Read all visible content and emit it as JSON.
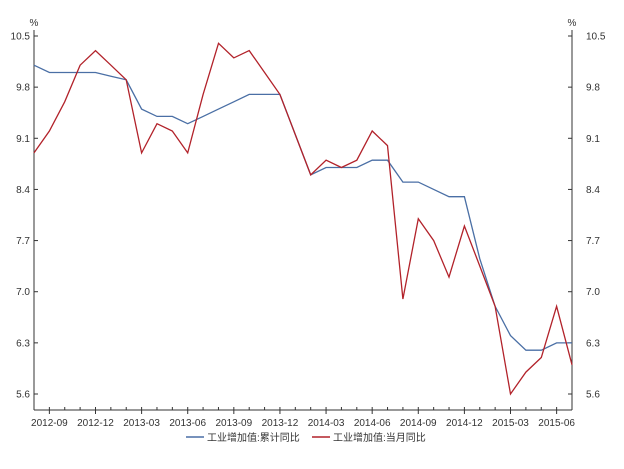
{
  "chart_data": {
    "type": "line",
    "unit_left": "%",
    "unit_right": "%",
    "ylim": [
      5.6,
      10.5
    ],
    "yticks": [
      10.5,
      9.8,
      9.1,
      8.4,
      7.7,
      7.0,
      6.3,
      5.6
    ],
    "ytick_labels": [
      "10.5",
      "9.8",
      "9.1",
      "8.4",
      "7.7",
      "7.0",
      "6.3",
      "5.6"
    ],
    "x_categories": [
      "2012-08",
      "2012-09",
      "2012-10",
      "2012-11",
      "2012-12",
      "2013-01",
      "2013-02",
      "2013-03",
      "2013-04",
      "2013-05",
      "2013-06",
      "2013-07",
      "2013-08",
      "2013-09",
      "2013-10",
      "2013-11",
      "2013-12",
      "2014-01",
      "2014-02",
      "2014-03",
      "2014-04",
      "2014-05",
      "2014-06",
      "2014-07",
      "2014-08",
      "2014-09",
      "2014-10",
      "2014-11",
      "2014-12",
      "2015-01",
      "2015-02",
      "2015-03",
      "2015-04",
      "2015-05",
      "2015-06",
      "2015-07"
    ],
    "xtick_labels": [
      "2012-09",
      "2012-12",
      "2013-03",
      "2013-06",
      "2013-09",
      "2013-12",
      "2014-03",
      "2014-06",
      "2014-09",
      "2014-12",
      "2015-03",
      "2015-06"
    ],
    "series": [
      {
        "name": "工业增加值:累计同比",
        "color": "#4a6fa5",
        "values": [
          10.1,
          10.0,
          10.0,
          10.0,
          10.0,
          9.95,
          9.9,
          9.5,
          9.4,
          9.4,
          9.3,
          9.4,
          9.5,
          9.6,
          9.7,
          9.7,
          9.7,
          9.15,
          8.6,
          8.7,
          8.7,
          8.7,
          8.8,
          8.8,
          8.5,
          8.5,
          8.4,
          8.3,
          8.3,
          7.45,
          6.8,
          6.4,
          6.2,
          6.2,
          6.3,
          6.3
        ]
      },
      {
        "name": "工业增加值:当月同比",
        "color": "#b2222a",
        "values": [
          8.9,
          9.2,
          9.6,
          10.1,
          10.3,
          10.1,
          9.9,
          8.9,
          9.3,
          9.2,
          8.9,
          9.7,
          10.4,
          10.2,
          10.3,
          10.0,
          9.7,
          9.15,
          8.6,
          8.8,
          8.7,
          8.8,
          9.2,
          9.0,
          6.9,
          8.0,
          7.7,
          7.2,
          7.9,
          7.35,
          6.8,
          5.6,
          5.9,
          6.1,
          6.8,
          6.0
        ]
      }
    ],
    "legend_position": "bottom",
    "grid": false
  }
}
